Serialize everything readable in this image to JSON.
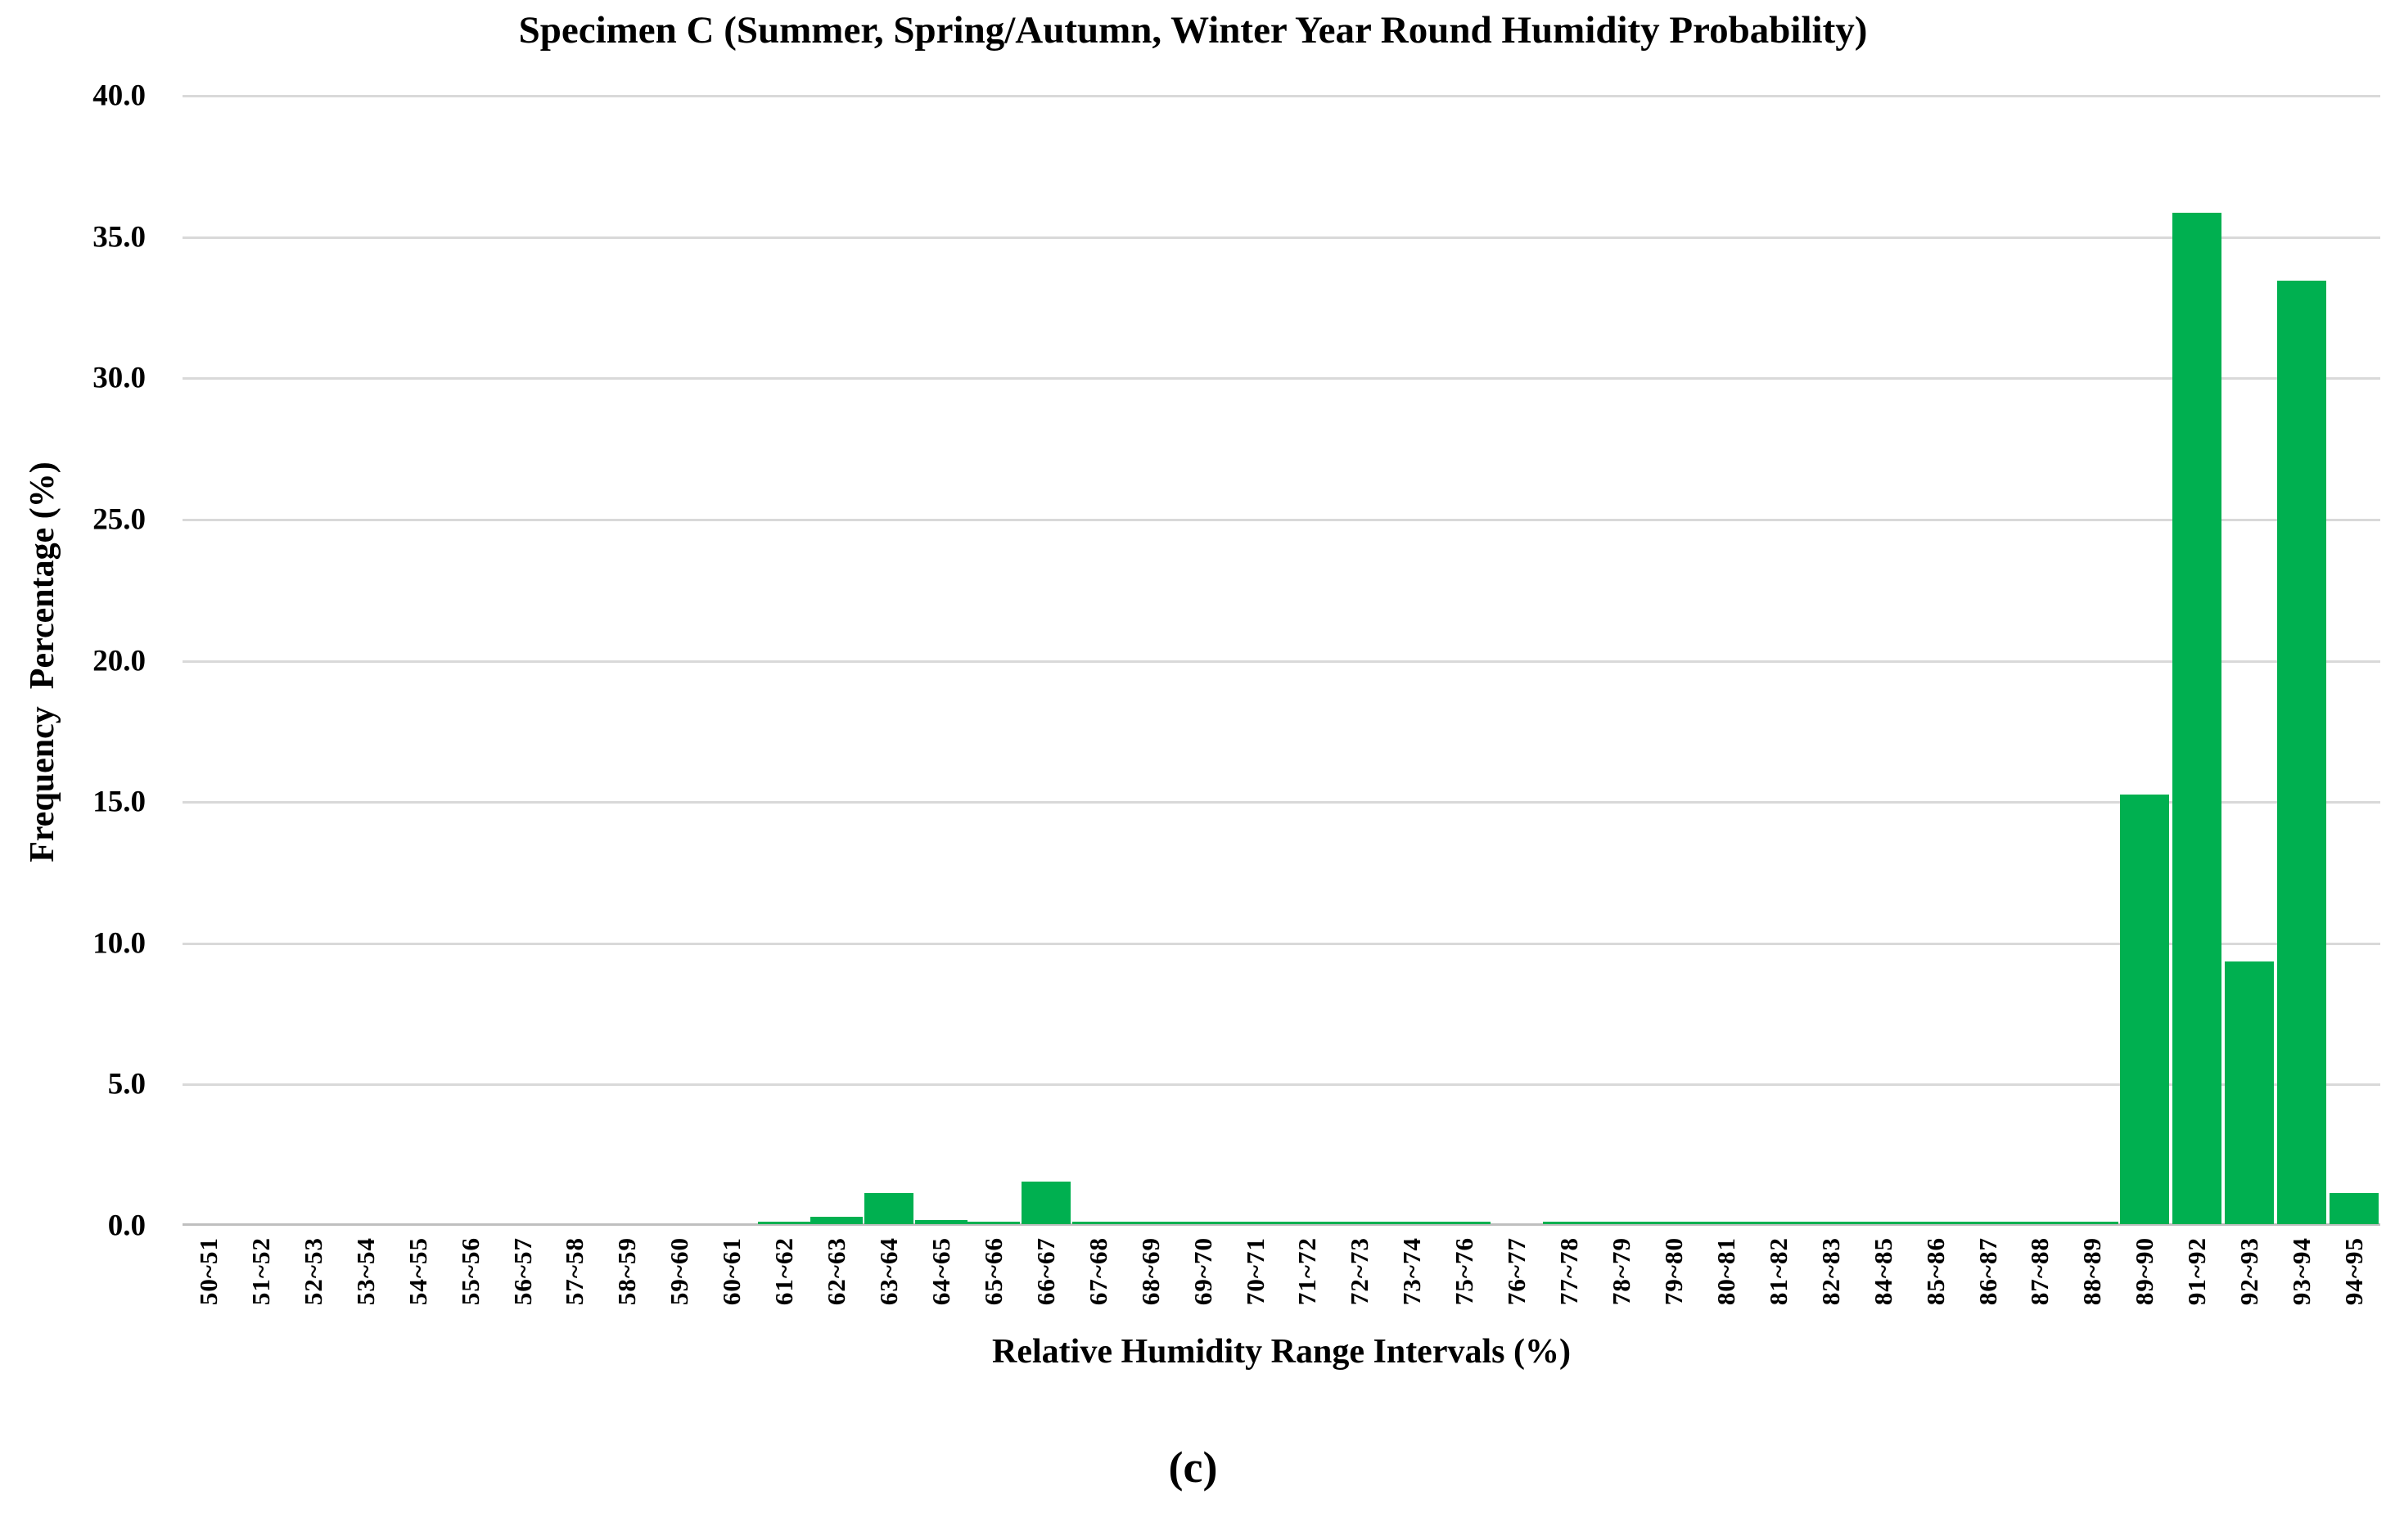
{
  "page": {
    "background": "#ffffff"
  },
  "chart_data": {
    "type": "bar",
    "title": "Specimen C (Summer, Spring/Autumn, Winter Year Round Humidity Probability)",
    "xlabel": "Relative Humidity Range Intervals (%)",
    "ylabel": "Frequency  Percentage (%)",
    "caption": "(c)",
    "categories": [
      "50~51",
      "51~52",
      "52~53",
      "53~54",
      "54~55",
      "55~56",
      "56~57",
      "57~58",
      "58~59",
      "59~60",
      "60~61",
      "61~62",
      "62~63",
      "63~64",
      "64~65",
      "65~66",
      "66~67",
      "67~68",
      "68~69",
      "69~70",
      "70~71",
      "71~72",
      "72~73",
      "73~74",
      "75~76",
      "76~77",
      "77~78",
      "78~79",
      "79~80",
      "80~81",
      "81~82",
      "82~83",
      "84~85",
      "85~86",
      "86~87",
      "87~88",
      "88~89",
      "89~90",
      "91~92",
      "92~93",
      "93~94",
      "94~95"
    ],
    "values": [
      0,
      0,
      0,
      0,
      0,
      0,
      0,
      0,
      0,
      0,
      0,
      0.1,
      0.25,
      1.1,
      0.15,
      0.1,
      1.5,
      0.1,
      0.1,
      0.1,
      0.1,
      0.1,
      0.1,
      0.1,
      0.1,
      0,
      0.1,
      0.1,
      0.1,
      0.1,
      0.1,
      0.1,
      0.1,
      0.1,
      0.1,
      0.1,
      0.1,
      15.2,
      35.8,
      9.3,
      33.4,
      1.1
    ],
    "ylim": [
      0,
      40
    ],
    "ytick_step": 5,
    "ytick_labels": [
      "0.0",
      "5.0",
      "10.0",
      "15.0",
      "20.0",
      "25.0",
      "30.0",
      "35.0",
      "40.0"
    ],
    "grid": "horizontal-only",
    "legend": "none",
    "bar_color": "#00B050",
    "gridline_color": "#D9D9D9",
    "axis_line_color": "#BFBFBF",
    "text_color": "#000000"
  }
}
